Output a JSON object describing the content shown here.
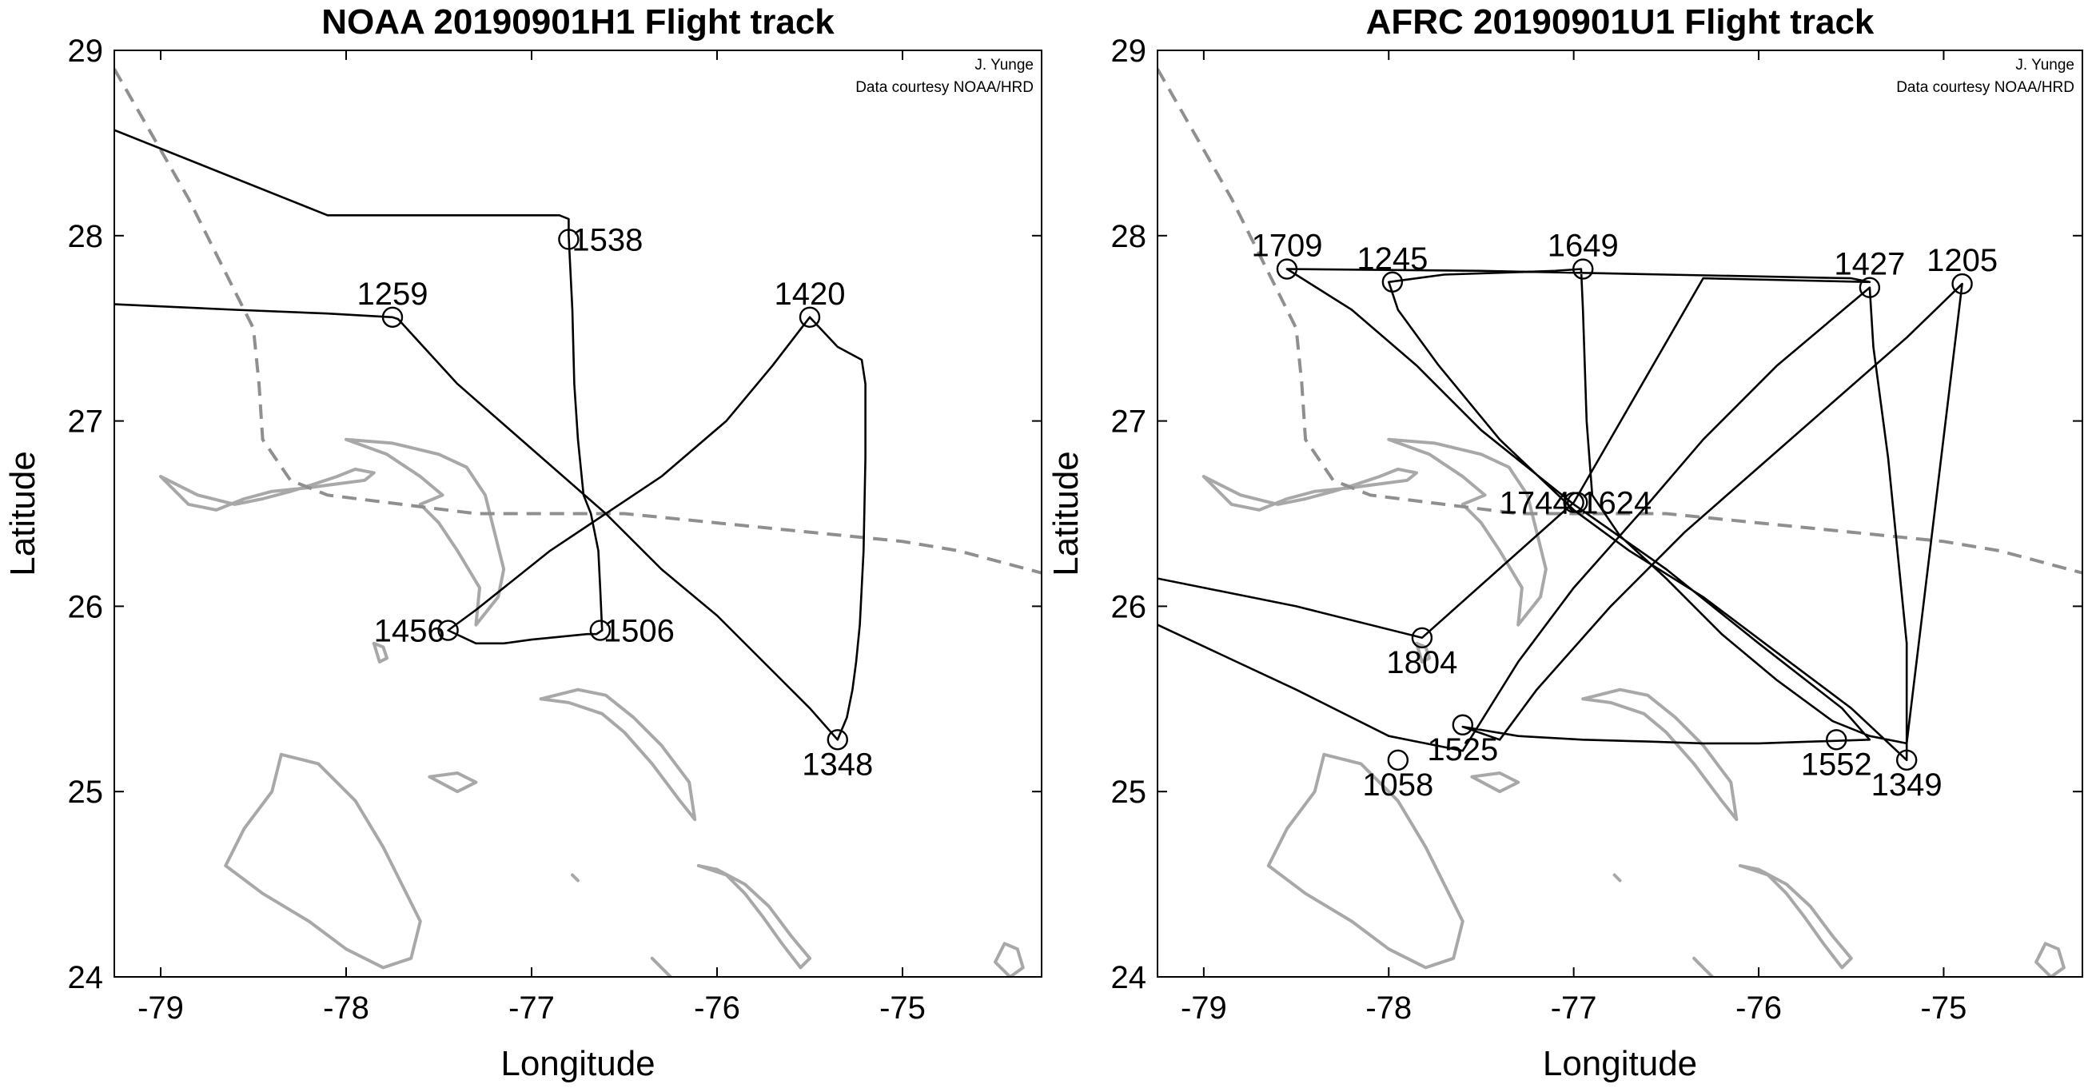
{
  "chart_data": [
    {
      "type": "line",
      "panel": "left",
      "title": "NOAA 20190901H1 Flight track",
      "xlabel": "Longitude",
      "ylabel": "Latitude",
      "xlim": [
        -79.25,
        -74.25
      ],
      "ylim": [
        24,
        29
      ],
      "xticks": [
        -79,
        -78,
        -77,
        -76,
        -75
      ],
      "yticks": [
        24,
        25,
        26,
        27,
        28,
        29
      ],
      "xtick_labels": [
        "-79",
        "-78",
        "-77",
        "-76",
        "-75"
      ],
      "ytick_labels": [
        "24",
        "25",
        "26",
        "27",
        "28",
        "29"
      ],
      "grid": false,
      "credit_lines": [
        "J. Yunge",
        "Data courtesy NOAA/HRD"
      ],
      "colors": {
        "track": "#000000",
        "coastline": "#a8a8a8",
        "storm_track": "#8f8f8f"
      },
      "flight_track": {
        "lon": [
          -79.25,
          -78.1,
          -76.85,
          -76.8,
          -76.8,
          -76.78,
          -76.77,
          -76.75,
          -76.72,
          -76.68,
          -76.64,
          -76.63,
          -76.62,
          -76.65,
          -76.7,
          -77.0,
          -77.15,
          -77.3,
          -77.45,
          -77.3,
          -77.15,
          -76.9,
          -76.6,
          -76.3,
          -75.95,
          -75.7,
          -75.5,
          -75.35,
          -75.22,
          -75.2,
          -75.2,
          -75.21,
          -75.23,
          -75.25,
          -75.27,
          -75.3,
          -75.35,
          -75.5,
          -75.7,
          -76.0,
          -76.3,
          -76.6,
          -77.0,
          -77.4,
          -77.72,
          -77.75,
          -78.1,
          -78.6,
          -79.25
        ],
        "lat": [
          28.57,
          28.11,
          28.11,
          28.09,
          28.0,
          27.6,
          27.2,
          26.9,
          26.6,
          26.5,
          26.3,
          26.1,
          25.87,
          25.85,
          25.85,
          25.82,
          25.8,
          25.8,
          25.87,
          25.98,
          26.1,
          26.3,
          26.5,
          26.7,
          27.0,
          27.3,
          27.56,
          27.4,
          27.33,
          27.2,
          26.8,
          26.3,
          25.9,
          25.7,
          25.55,
          25.4,
          25.28,
          25.45,
          25.65,
          25.95,
          26.2,
          26.5,
          26.85,
          27.2,
          27.55,
          27.56,
          27.58,
          27.6,
          27.63
        ]
      },
      "waypoints": [
        {
          "label": "1538",
          "lon": -76.8,
          "lat": 27.98,
          "label_pos": "right"
        },
        {
          "label": "1259",
          "lon": -77.75,
          "lat": 27.56,
          "label_pos": "above"
        },
        {
          "label": "1420",
          "lon": -75.5,
          "lat": 27.56,
          "label_pos": "above"
        },
        {
          "label": "1456",
          "lon": -77.45,
          "lat": 25.87,
          "label_pos": "left"
        },
        {
          "label": "1506",
          "lon": -76.63,
          "lat": 25.87,
          "label_pos": "right"
        },
        {
          "label": "1348",
          "lon": -75.35,
          "lat": 25.28,
          "label_pos": "below"
        }
      ],
      "storm_track": {
        "lon": [
          -79.25,
          -78.85,
          -78.5,
          -78.47,
          -78.45,
          -78.3,
          -78.1,
          -77.7,
          -77.3,
          -77.0,
          -76.5,
          -76.0,
          -75.5,
          -75.0,
          -74.7,
          -74.25
        ],
        "lat": [
          28.9,
          28.2,
          27.5,
          27.2,
          26.9,
          26.68,
          26.6,
          26.55,
          26.5,
          26.5,
          26.5,
          26.45,
          26.4,
          26.35,
          26.3,
          26.18
        ]
      }
    },
    {
      "type": "line",
      "panel": "right",
      "title": "AFRC 20190901U1 Flight track",
      "xlabel": "Longitude",
      "ylabel": "Latitude",
      "xlim": [
        -79.25,
        -74.25
      ],
      "ylim": [
        24,
        29
      ],
      "xticks": [
        -79,
        -78,
        -77,
        -76,
        -75
      ],
      "yticks": [
        24,
        25,
        26,
        27,
        28,
        29
      ],
      "xtick_labels": [
        "-79",
        "-78",
        "-77",
        "-76",
        "-75"
      ],
      "ytick_labels": [
        "24",
        "25",
        "26",
        "27",
        "28",
        "29"
      ],
      "grid": false,
      "credit_lines": [
        "J. Yunge",
        "Data courtesy NOAA/HRD"
      ],
      "colors": {
        "track": "#000000",
        "coastline": "#a8a8a8",
        "storm_track": "#8f8f8f"
      },
      "flight_track": {
        "lon": [
          -79.25,
          -78.5,
          -78.0,
          -77.6,
          -77.55,
          -77.3,
          -77.0,
          -76.6,
          -76.3,
          -75.9,
          -75.4,
          -75.38,
          -75.3,
          -75.25,
          -75.2,
          -75.2,
          -75.5,
          -75.9,
          -76.3,
          -76.7,
          -77.0,
          -77.4,
          -77.73,
          -77.95,
          -78.0,
          -77.7,
          -77.4,
          -77.1,
          -76.96,
          -76.95,
          -76.93,
          -76.9,
          -76.75,
          -76.5,
          -76.2,
          -75.9,
          -75.6,
          -75.4,
          -75.2,
          -74.9,
          -75.2,
          -75.6,
          -76.0,
          -76.4,
          -76.8,
          -77.2,
          -77.4,
          -77.6,
          -77.3,
          -76.95,
          -76.6,
          -76.3,
          -76.0,
          -75.7,
          -75.4,
          -75.55,
          -76.0,
          -76.5,
          -77.0,
          -77.5,
          -77.85,
          -78.2,
          -78.55,
          -77.5,
          -76.5,
          -75.5,
          -75.4,
          -76.3,
          -77.0,
          -77.82,
          -78.5,
          -79.25
        ],
        "lat": [
          25.9,
          25.55,
          25.3,
          25.22,
          25.3,
          25.7,
          26.1,
          26.55,
          26.9,
          27.3,
          27.72,
          27.4,
          26.8,
          26.3,
          25.8,
          25.17,
          25.45,
          25.75,
          26.05,
          26.3,
          26.52,
          26.9,
          27.3,
          27.6,
          27.75,
          27.79,
          27.8,
          27.81,
          27.82,
          27.6,
          27.0,
          26.6,
          26.38,
          26.15,
          25.85,
          25.6,
          25.38,
          25.3,
          25.26,
          27.74,
          27.45,
          27.1,
          26.75,
          26.4,
          26.0,
          25.55,
          25.28,
          25.35,
          25.3,
          25.28,
          25.27,
          25.26,
          25.26,
          25.27,
          25.28,
          25.45,
          25.8,
          26.2,
          26.55,
          26.95,
          27.3,
          27.6,
          27.82,
          27.81,
          27.79,
          27.77,
          27.75,
          27.77,
          26.56,
          25.83,
          26.0,
          26.15
        ]
      },
      "waypoints": [
        {
          "label": "1709",
          "lon": -78.55,
          "lat": 27.82,
          "label_pos": "above"
        },
        {
          "label": "1245",
          "lon": -77.98,
          "lat": 27.75,
          "label_pos": "above"
        },
        {
          "label": "1649",
          "lon": -76.95,
          "lat": 27.82,
          "label_pos": "above"
        },
        {
          "label": "1427",
          "lon": -75.4,
          "lat": 27.72,
          "label_pos": "above"
        },
        {
          "label": "1205",
          "lon": -74.9,
          "lat": 27.74,
          "label_pos": "above"
        },
        {
          "label": "1744",
          "lon": -77.0,
          "lat": 26.56,
          "label_pos": "left"
        },
        {
          "label": "1624",
          "lon": -76.98,
          "lat": 26.56,
          "label_pos": "right"
        },
        {
          "label": "1804",
          "lon": -77.82,
          "lat": 25.83,
          "label_pos": "below"
        },
        {
          "label": "1525",
          "lon": -77.6,
          "lat": 25.36,
          "label_pos": "below"
        },
        {
          "label": "1058",
          "lon": -77.95,
          "lat": 25.17,
          "label_pos": "below"
        },
        {
          "label": "1552",
          "lon": -75.58,
          "lat": 25.28,
          "label_pos": "below"
        },
        {
          "label": "1349",
          "lon": -75.2,
          "lat": 25.17,
          "label_pos": "below"
        }
      ],
      "storm_track": {
        "lon": [
          -79.25,
          -78.85,
          -78.5,
          -78.47,
          -78.45,
          -78.3,
          -78.1,
          -77.7,
          -77.3,
          -77.0,
          -76.5,
          -76.0,
          -75.5,
          -75.0,
          -74.7,
          -74.25
        ],
        "lat": [
          28.9,
          28.2,
          27.5,
          27.2,
          26.9,
          26.68,
          26.6,
          26.55,
          26.5,
          26.5,
          26.5,
          26.45,
          26.4,
          26.35,
          26.3,
          26.18
        ]
      }
    }
  ],
  "coastlines": [
    {
      "name": "grand-bahama",
      "lon": [
        -79.0,
        -78.8,
        -78.6,
        -78.45,
        -78.3,
        -78.2,
        -78.05,
        -77.95,
        -77.85,
        -77.9,
        -78.05,
        -78.2,
        -78.4,
        -78.55,
        -78.7,
        -78.85,
        -79.0
      ],
      "lat": [
        26.7,
        26.6,
        26.55,
        26.58,
        26.62,
        26.65,
        26.7,
        26.74,
        26.72,
        26.68,
        26.66,
        26.64,
        26.62,
        26.58,
        26.52,
        26.55,
        26.7
      ]
    },
    {
      "name": "abaco",
      "lon": [
        -78.0,
        -77.75,
        -77.5,
        -77.35,
        -77.25,
        -77.2,
        -77.15,
        -77.18,
        -77.3,
        -77.28,
        -77.4,
        -77.5,
        -77.6,
        -77.48,
        -77.6,
        -77.78,
        -78.0
      ],
      "lat": [
        26.9,
        26.88,
        26.82,
        26.75,
        26.6,
        26.4,
        26.2,
        26.05,
        25.9,
        26.1,
        26.3,
        26.45,
        26.55,
        26.6,
        26.7,
        26.82,
        26.9
      ]
    },
    {
      "name": "eleuthera",
      "lon": [
        -76.95,
        -76.75,
        -76.6,
        -76.45,
        -76.3,
        -76.15,
        -76.12,
        -76.2,
        -76.35,
        -76.5,
        -76.62,
        -76.8,
        -76.95
      ],
      "lat": [
        25.5,
        25.55,
        25.52,
        25.4,
        25.25,
        25.05,
        24.85,
        24.95,
        25.15,
        25.32,
        25.42,
        25.48,
        25.5
      ]
    },
    {
      "name": "andros",
      "lon": [
        -78.35,
        -78.15,
        -77.95,
        -77.8,
        -77.7,
        -77.6,
        -77.65,
        -77.8,
        -78.0,
        -78.2,
        -78.45,
        -78.65,
        -78.55,
        -78.4,
        -78.35
      ],
      "lat": [
        25.2,
        25.15,
        24.95,
        24.7,
        24.5,
        24.3,
        24.1,
        24.05,
        24.15,
        24.3,
        24.45,
        24.6,
        24.8,
        25.0,
        25.2
      ]
    },
    {
      "name": "exuma",
      "lon": [
        -76.1,
        -75.95,
        -75.85,
        -75.75,
        -75.65,
        -75.55,
        -75.5,
        -75.6,
        -75.72,
        -75.85,
        -76.0,
        -76.1
      ],
      "lat": [
        24.6,
        24.55,
        24.45,
        24.32,
        24.18,
        24.05,
        24.1,
        24.22,
        24.38,
        24.5,
        24.58,
        24.6
      ]
    },
    {
      "name": "cat-island",
      "lon": [
        -74.45,
        -74.38,
        -74.35,
        -74.42,
        -74.5,
        -74.45
      ],
      "lat": [
        24.18,
        24.15,
        24.05,
        24.0,
        24.08,
        24.18
      ]
    },
    {
      "name": "berry-islands",
      "lon": [
        -77.85,
        -77.8,
        -77.78,
        -77.82,
        -77.85
      ],
      "lat": [
        25.8,
        25.78,
        25.72,
        25.7,
        25.8
      ]
    },
    {
      "name": "new-providence",
      "lon": [
        -77.55,
        -77.4,
        -77.3,
        -77.4,
        -77.55
      ],
      "lat": [
        25.08,
        25.1,
        25.05,
        25.0,
        25.08
      ]
    },
    {
      "name": "long-island-frag",
      "lon": [
        -76.35,
        -76.3,
        -76.25
      ],
      "lat": [
        24.1,
        24.05,
        24.0
      ]
    },
    {
      "name": "rock-frag",
      "lon": [
        -76.78,
        -76.75
      ],
      "lat": [
        24.55,
        24.52
      ]
    }
  ]
}
